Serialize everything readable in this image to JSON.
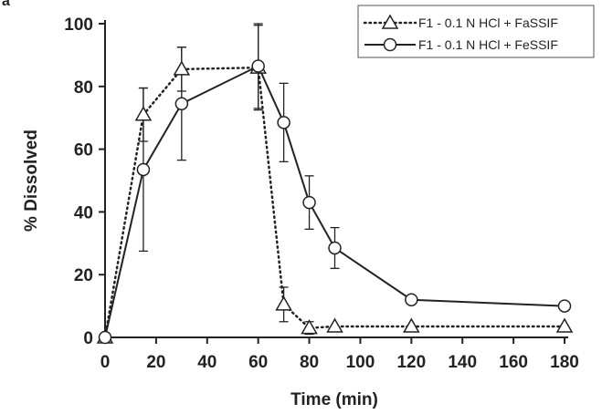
{
  "panel_label": "a",
  "chart_data": {
    "type": "line",
    "title": "",
    "xlabel": "Time (min)",
    "ylabel": "% Dissolved",
    "xlim": [
      0,
      180
    ],
    "ylim": [
      0,
      100
    ],
    "xticks": [
      0,
      20,
      40,
      60,
      80,
      100,
      120,
      140,
      160,
      180
    ],
    "yticks": [
      0,
      20,
      40,
      60,
      80,
      100
    ],
    "grid": false,
    "legend_position": "top-right",
    "series": [
      {
        "name": "F1 - 0.1 N HCl + FaSSIF",
        "marker": "triangle",
        "line_style": "dotted",
        "x": [
          0,
          15,
          30,
          60,
          70,
          80,
          90,
          120,
          180
        ],
        "y": [
          0,
          71,
          85.5,
          86,
          10.5,
          3,
          3.5,
          3.5,
          3.5
        ],
        "error": [
          0,
          8.5,
          7,
          13.5,
          5.5,
          2,
          0,
          0,
          0
        ]
      },
      {
        "name": "F1 - 0.1 N HCl + FeSSIF",
        "marker": "circle",
        "line_style": "solid",
        "x": [
          0,
          15,
          30,
          60,
          70,
          80,
          90,
          120,
          180
        ],
        "y": [
          0,
          53.5,
          74.5,
          86.5,
          68.5,
          43,
          28.5,
          12,
          10
        ],
        "error": [
          0,
          26,
          18,
          13.5,
          12.5,
          8.5,
          6.5,
          0,
          0
        ]
      }
    ]
  }
}
